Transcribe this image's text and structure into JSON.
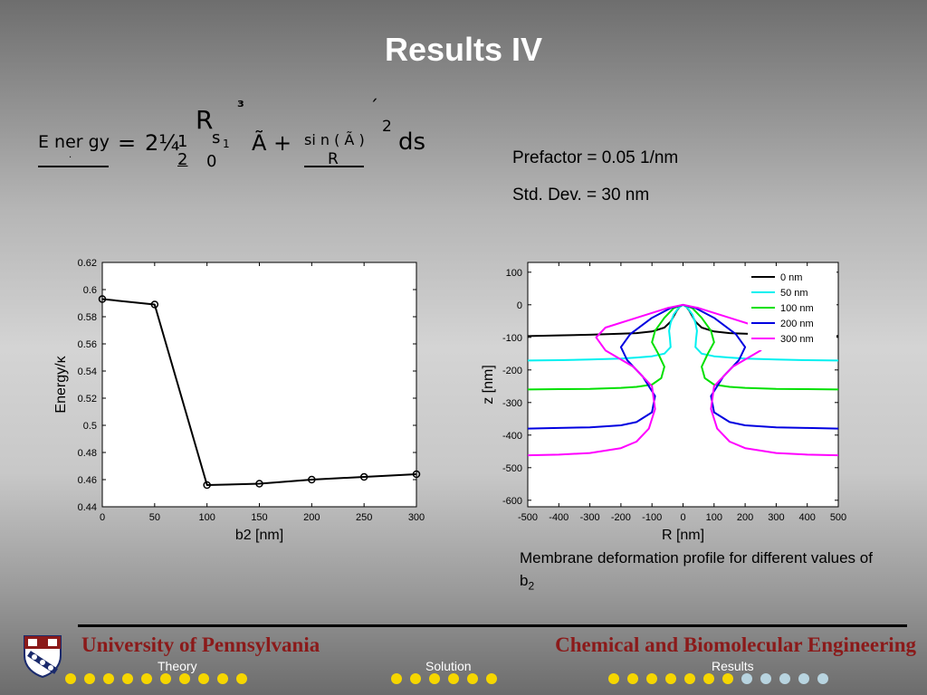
{
  "slide": {
    "title": "Results IV",
    "equation": {
      "lhs_top": "E ner gy",
      "lhs_dot": ".",
      "equals": "=",
      "coef": "2¼",
      "frac_num": "1",
      "frac_den": "2",
      "int_symbol": "R",
      "int_upper": "s",
      "int_upper_sub": "1",
      "int_lower": "0",
      "sup3": "³",
      "atilde_plus": "Ã +",
      "sin_num": "si n ( Ã )",
      "sin_den": "R",
      "acute": "´",
      "power": "2",
      "ds": "ds"
    },
    "prefactor": "Prefactor = 0.05 1/nm",
    "stddev": "Std. Dev. = 30 nm",
    "caption_main": "Membrane deformation profile for different values of b",
    "caption_sub": "2"
  },
  "footer": {
    "university": "University of Pennsylvania",
    "department": "Chemical and Biomolecular Engineering",
    "nav": [
      "Theory",
      "Solution",
      "Results"
    ],
    "nav_dots": {
      "theory": 10,
      "solution": 6,
      "results_active": 7,
      "results_inactive": 5
    },
    "colors": {
      "dot_active": "#f5d600",
      "dot_inactive": "#b8d4e0",
      "brand": "#8b1a1a"
    }
  },
  "chart_data": [
    {
      "type": "line",
      "xlabel": "b2 [nm]",
      "ylabel": "Energy/κ",
      "xlim": [
        0,
        300
      ],
      "ylim": [
        0.44,
        0.62
      ],
      "xticks": [
        "0",
        "50",
        "100",
        "150",
        "200",
        "250",
        "300"
      ],
      "yticks": [
        "0.44",
        "0.46",
        "0.48",
        "0.5",
        "0.52",
        "0.54",
        "0.56",
        "0.58",
        "0.6",
        "0.62"
      ],
      "series": [
        {
          "x": [
            0,
            50,
            100,
            150,
            200,
            250,
            300
          ],
          "values": [
            0.593,
            0.589,
            0.456,
            0.457,
            0.46,
            0.462,
            0.464
          ],
          "marker": "circle",
          "color": "#000000"
        }
      ],
      "grid": false
    },
    {
      "type": "line",
      "xlabel": "R [nm]",
      "ylabel": "z [nm]",
      "xlim": [
        -500,
        500
      ],
      "ylim": [
        -620,
        130
      ],
      "xticks": [
        "-500",
        "-400",
        "-300",
        "-200",
        "-100",
        "0",
        "100",
        "200",
        "300",
        "400",
        "500"
      ],
      "yticks": [
        "100",
        "0",
        "-100",
        "-200",
        "-300",
        "-400",
        "-500",
        "-600"
      ],
      "legend_position": "top-right",
      "series": [
        {
          "name": "0 nm",
          "color": "#000000",
          "x": [
            0,
            10,
            20,
            30,
            40,
            60,
            100,
            150,
            200,
            300,
            400,
            500
          ],
          "values": [
            0,
            -5,
            -18,
            -35,
            -52,
            -70,
            -82,
            -87,
            -89,
            -92,
            -94,
            -96
          ]
        },
        {
          "name": "50 nm",
          "color": "#00f0f0",
          "x": [
            0,
            15,
            30,
            40,
            45,
            42,
            40,
            60,
            100,
            150,
            200,
            300,
            400,
            500
          ],
          "values": [
            0,
            -10,
            -30,
            -55,
            -80,
            -105,
            -130,
            -150,
            -158,
            -162,
            -165,
            -168,
            -170,
            -171
          ]
        },
        {
          "name": "100 nm",
          "color": "#00e000",
          "x": [
            0,
            30,
            60,
            90,
            100,
            80,
            60,
            70,
            100,
            150,
            200,
            300,
            400,
            500
          ],
          "values": [
            0,
            -10,
            -40,
            -80,
            -115,
            -150,
            -190,
            -225,
            -245,
            -252,
            -255,
            -258,
            -259,
            -260
          ]
        },
        {
          "name": "200 nm",
          "color": "#0000e0",
          "x": [
            0,
            40,
            100,
            170,
            200,
            180,
            130,
            90,
            100,
            150,
            200,
            300,
            400,
            500
          ],
          "values": [
            0,
            -10,
            -40,
            -90,
            -130,
            -170,
            -220,
            -280,
            -330,
            -360,
            -370,
            -376,
            -378,
            -380
          ]
        },
        {
          "name": "300 nm",
          "color": "#ff00ff",
          "x": [
            0,
            50,
            150,
            250,
            280,
            250,
            160,
            100,
            90,
            110,
            150,
            200,
            300,
            400,
            500
          ],
          "values": [
            0,
            -10,
            -40,
            -70,
            -100,
            -140,
            -190,
            -250,
            -320,
            -380,
            -420,
            -440,
            -455,
            -460,
            -462
          ]
        }
      ],
      "grid": false
    }
  ]
}
